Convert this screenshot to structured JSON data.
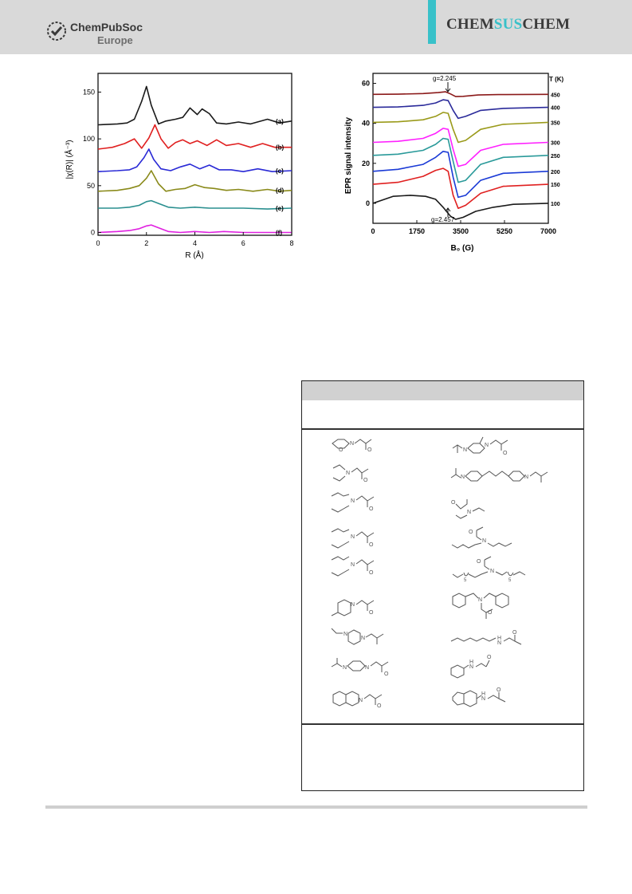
{
  "header": {
    "logo_name": "ChemPubSoc",
    "logo_sub": "Europe",
    "journal_part1": "CHEM",
    "journal_part2": "SUS",
    "journal_part3": "CHEM",
    "accent_color": "#38c1c9"
  },
  "chart_data": [
    {
      "type": "line",
      "xlabel": "R (Å)",
      "ylabel": "|χ(R)| (Å⁻³)",
      "xlim": [
        0,
        8
      ],
      "ylim": [
        -3,
        170
      ],
      "xticks": [
        "0",
        "2",
        "4",
        "6",
        "8"
      ],
      "yticks": [
        "0",
        "50",
        "100",
        "150"
      ],
      "series": [
        {
          "name": "(a)",
          "color": "#1a1a1a",
          "x": [
            0,
            0.8,
            1.2,
            1.5,
            1.8,
            2.0,
            2.2,
            2.5,
            2.8,
            3.2,
            3.5,
            3.8,
            4.1,
            4.3,
            4.6,
            4.9,
            5.3,
            5.8,
            6.3,
            7.0,
            7.5,
            8.0
          ],
          "y": [
            115,
            116,
            117,
            121,
            140,
            156,
            136,
            116,
            119,
            121,
            123,
            133,
            126,
            132,
            127,
            117,
            116,
            118,
            116,
            121,
            117,
            119
          ]
        },
        {
          "name": "(b)",
          "color": "#e02020",
          "x": [
            0,
            0.6,
            1.1,
            1.5,
            1.8,
            2.1,
            2.35,
            2.6,
            2.9,
            3.2,
            3.5,
            3.8,
            4.1,
            4.5,
            4.9,
            5.3,
            5.8,
            6.3,
            6.8,
            7.3,
            8.0
          ],
          "y": [
            89,
            91,
            95,
            100,
            90,
            101,
            115,
            100,
            90,
            96,
            99,
            95,
            98,
            93,
            99,
            93,
            95,
            91,
            95,
            91,
            91
          ]
        },
        {
          "name": "(c)",
          "color": "#2a2ad6",
          "x": [
            0,
            0.8,
            1.3,
            1.6,
            1.9,
            2.1,
            2.3,
            2.6,
            3.0,
            3.4,
            3.8,
            4.2,
            4.6,
            5.0,
            5.5,
            6.0,
            6.6,
            7.2,
            8.0
          ],
          "y": [
            65,
            66,
            67,
            70,
            80,
            89,
            78,
            68,
            66,
            70,
            73,
            68,
            72,
            67,
            67,
            65,
            68,
            65,
            66
          ]
        },
        {
          "name": "(d)",
          "color": "#8a8a1a",
          "x": [
            0,
            0.8,
            1.3,
            1.7,
            2.0,
            2.2,
            2.5,
            2.8,
            3.2,
            3.6,
            4.0,
            4.4,
            4.8,
            5.3,
            5.8,
            6.4,
            7.0,
            7.5,
            8.0
          ],
          "y": [
            44,
            45,
            47,
            50,
            58,
            66,
            52,
            44,
            46,
            47,
            51,
            48,
            47,
            45,
            46,
            44,
            46,
            44,
            45
          ]
        },
        {
          "name": "(e)",
          "color": "#2a8f8f",
          "x": [
            0,
            0.8,
            1.3,
            1.7,
            2.0,
            2.2,
            2.5,
            2.9,
            3.4,
            4.0,
            4.6,
            5.2,
            6.0,
            7.0,
            8.0
          ],
          "y": [
            26,
            26,
            27,
            29,
            33,
            34,
            31,
            27,
            26,
            27,
            26,
            26,
            26,
            25,
            26
          ]
        },
        {
          "name": "(f)",
          "color": "#e020e0",
          "x": [
            0,
            0.8,
            1.3,
            1.7,
            2.0,
            2.2,
            2.5,
            2.9,
            3.4,
            4.0,
            4.6,
            5.2,
            6.0,
            7.0,
            8.0
          ],
          "y": [
            0,
            1,
            2,
            4,
            7,
            8,
            5,
            1,
            0,
            1,
            0,
            1,
            0,
            0,
            0
          ]
        }
      ]
    },
    {
      "type": "line",
      "xlabel": "B₀ (G)",
      "ylabel": "EPR signal intensity",
      "xlim": [
        0,
        7000
      ],
      "ylim": [
        -10,
        65
      ],
      "xticks": [
        "0",
        "1750",
        "3500",
        "5250",
        "7000"
      ],
      "yticks": [
        "0",
        "20",
        "40",
        "60"
      ],
      "legend_title": "T (K)",
      "annotations": [
        "g=2.245",
        "g=2.457"
      ],
      "series": [
        {
          "name": "450",
          "color": "#8b1a1a",
          "x": [
            0,
            1000,
            2000,
            2600,
            2900,
            3100,
            3300,
            3600,
            4200,
            5000,
            7000
          ],
          "y": [
            54.5,
            54.6,
            54.9,
            55.4,
            55.8,
            54.7,
            53.4,
            53.5,
            54.2,
            54.4,
            54.5
          ]
        },
        {
          "name": "400",
          "color": "#2a2a9a",
          "x": [
            0,
            1000,
            2000,
            2500,
            2800,
            3000,
            3200,
            3400,
            3700,
            4300,
            5200,
            7000
          ],
          "y": [
            48,
            48.2,
            49,
            50.2,
            51.8,
            51.4,
            46.5,
            42.5,
            43.5,
            46.5,
            47.5,
            48
          ]
        },
        {
          "name": "350",
          "color": "#9a9a1a",
          "x": [
            0,
            1000,
            2000,
            2500,
            2800,
            3000,
            3200,
            3400,
            3700,
            4300,
            5200,
            7000
          ],
          "y": [
            40.5,
            40.8,
            41.8,
            43.5,
            45.5,
            45,
            37,
            30.5,
            31.5,
            37,
            39.5,
            40.5
          ]
        },
        {
          "name": "300",
          "color": "#ff20ff",
          "x": [
            0,
            1000,
            2000,
            2500,
            2800,
            3000,
            3200,
            3400,
            3700,
            4300,
            5200,
            7000
          ],
          "y": [
            30.5,
            31,
            32.5,
            35,
            37.5,
            37,
            27,
            18.5,
            19.5,
            26.5,
            29.5,
            30.5
          ]
        },
        {
          "name": "250",
          "color": "#2a9a9a",
          "x": [
            0,
            1000,
            2000,
            2500,
            2800,
            3000,
            3200,
            3400,
            3700,
            4300,
            5200,
            7000
          ],
          "y": [
            24,
            24.6,
            26.5,
            29.5,
            32.5,
            32,
            21,
            10.5,
            11.5,
            19.5,
            23,
            24
          ]
        },
        {
          "name": "200",
          "color": "#1a3ad6",
          "x": [
            0,
            1000,
            2000,
            2500,
            2800,
            3000,
            3200,
            3400,
            3700,
            4300,
            5200,
            7000
          ],
          "y": [
            16,
            17,
            19.5,
            23,
            26,
            25.5,
            13,
            3,
            4,
            11.5,
            15,
            16
          ]
        },
        {
          "name": "150",
          "color": "#e02020",
          "x": [
            0,
            1000,
            2000,
            2500,
            2800,
            3000,
            3200,
            3400,
            3700,
            4300,
            5200,
            7000
          ],
          "y": [
            9.5,
            10.5,
            13.5,
            16.5,
            17.5,
            16,
            4,
            -2.5,
            -1,
            5,
            8.5,
            9.5
          ]
        },
        {
          "name": "100",
          "color": "#1a1a1a",
          "x": [
            0,
            800,
            1500,
            2100,
            2500,
            2800,
            3100,
            3300,
            3600,
            4100,
            4800,
            5600,
            7000
          ],
          "y": [
            0,
            3.5,
            4,
            3.5,
            2,
            -2,
            -6.5,
            -8,
            -7,
            -4,
            -2,
            -0.5,
            0
          ]
        }
      ]
    }
  ]
}
